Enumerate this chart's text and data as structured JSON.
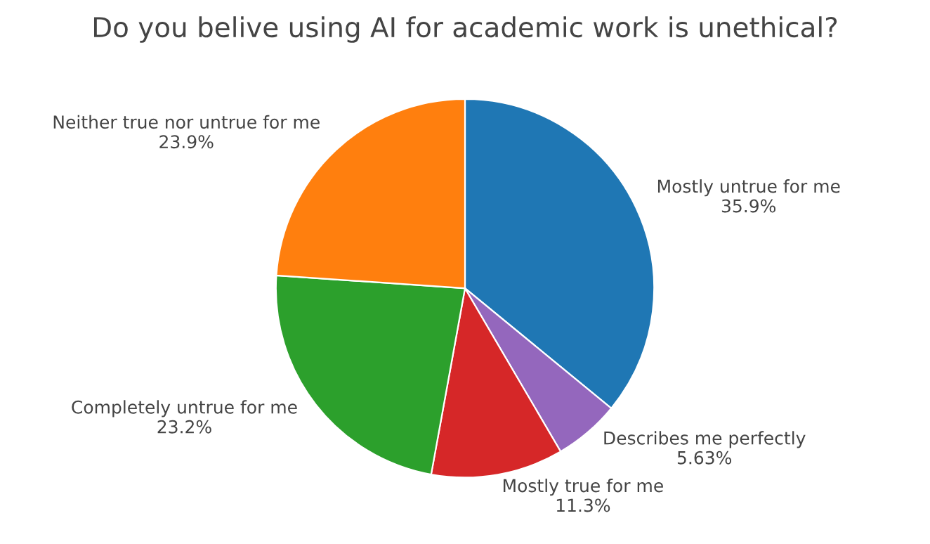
{
  "chart_data": {
    "type": "pie",
    "title": "Do you belive using AI for academic work is unethical?",
    "categories": [
      "Mostly untrue for me",
      "Describes me perfectly",
      "Mostly true for me",
      "Completely untrue for me",
      "Neither true nor untrue for me"
    ],
    "values": [
      35.9,
      5.63,
      11.3,
      23.2,
      23.9
    ],
    "value_labels": [
      "35.9%",
      "5.63%",
      "11.3%",
      "23.2%",
      "23.9%"
    ],
    "colors": [
      "#1f77b4",
      "#9467bd",
      "#d62728",
      "#2ca02c",
      "#ff7f0e"
    ],
    "legend": false
  }
}
